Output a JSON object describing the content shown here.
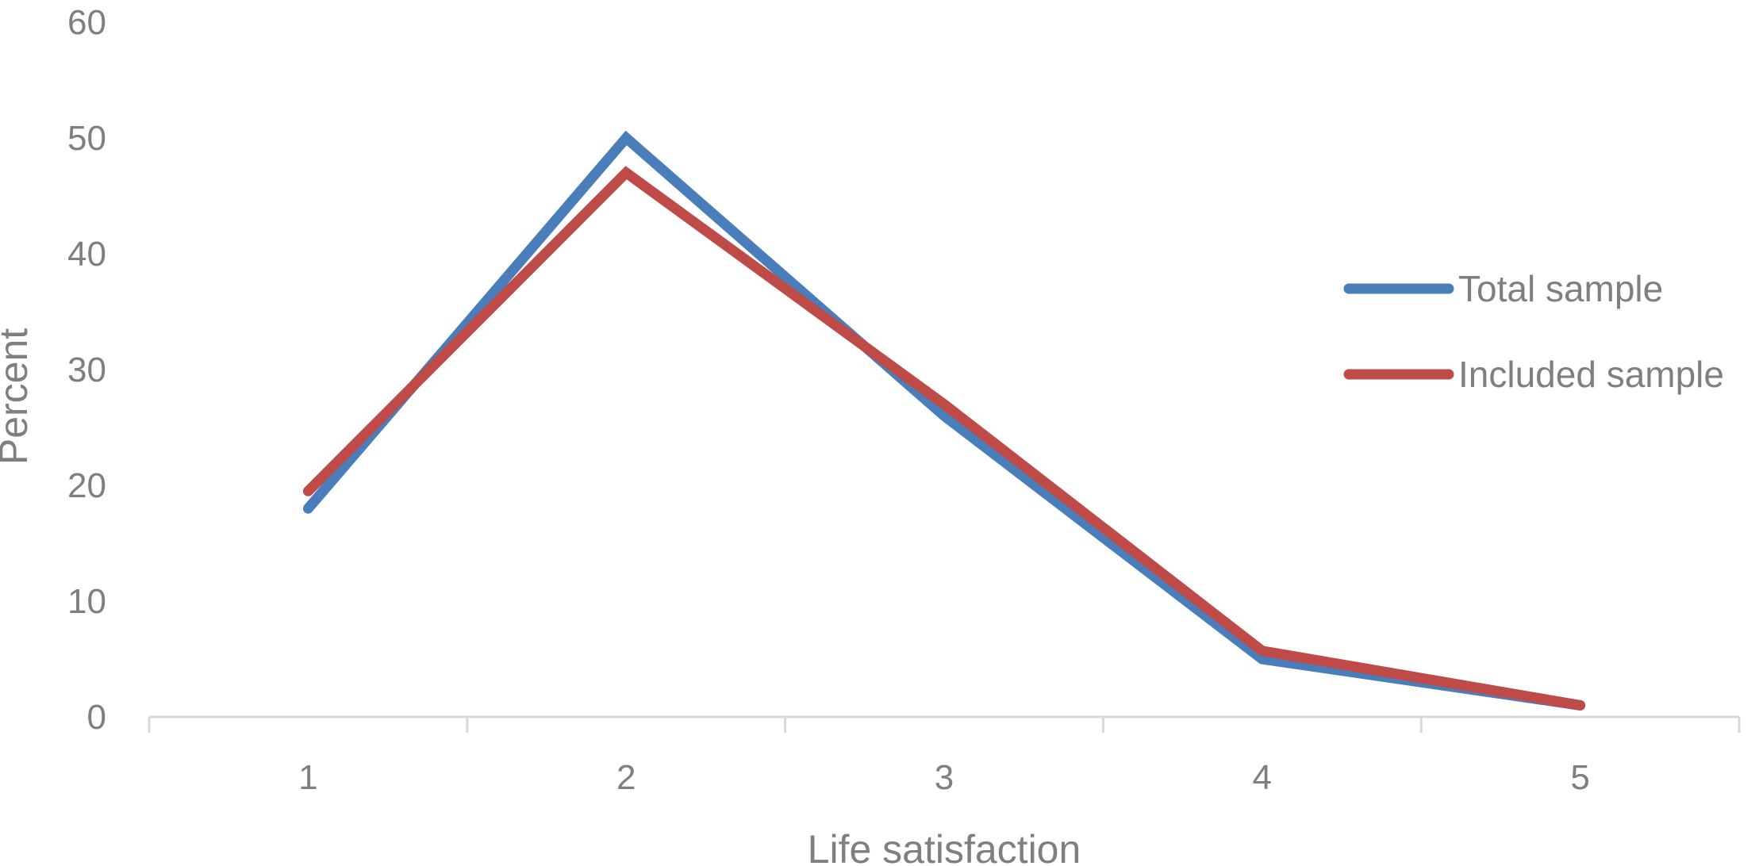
{
  "chart_data": {
    "type": "line",
    "x": [
      1,
      2,
      3,
      4,
      5
    ],
    "categories": [
      "1",
      "2",
      "3",
      "4",
      "5"
    ],
    "series": [
      {
        "name": "Total sample",
        "color": "#4a7ebb",
        "values": [
          18,
          50,
          26,
          5,
          1
        ]
      },
      {
        "name": "Included sample",
        "color": "#be4b48",
        "values": [
          19.5,
          47,
          27,
          5.7,
          1
        ]
      }
    ],
    "xlabel": "Life satisfaction",
    "ylabel": "Percent",
    "ylim": [
      0,
      60
    ],
    "yticks": [
      "0",
      "10",
      "20",
      "30",
      "40",
      "50",
      "60"
    ],
    "grid": false,
    "legend": "right"
  }
}
